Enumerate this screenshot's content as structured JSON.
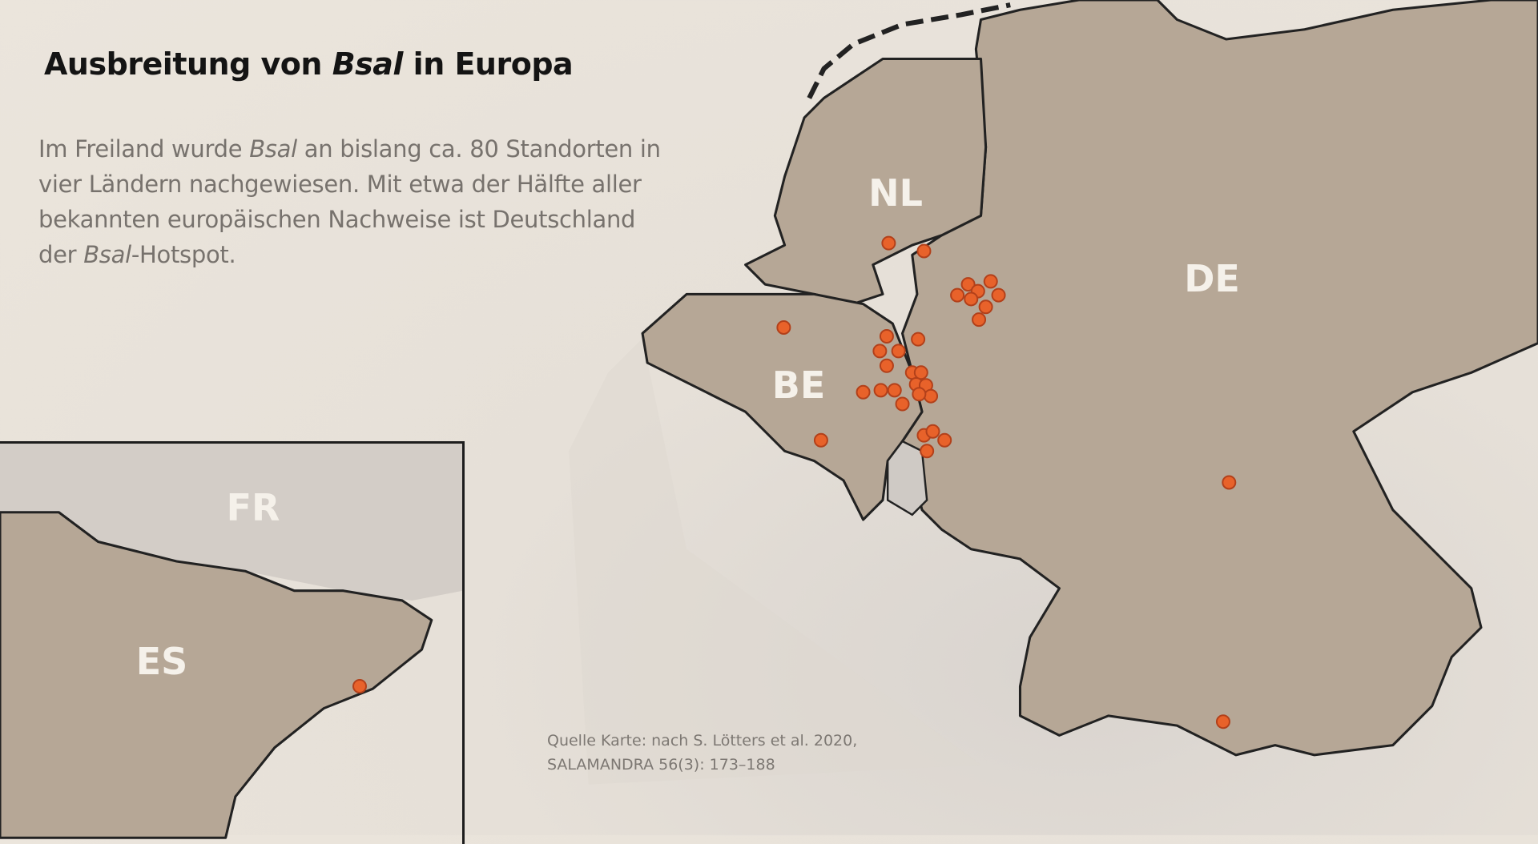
{
  "title": {
    "prefix": "Ausbreitung von ",
    "italic": "Bsal",
    "suffix": " in Europa"
  },
  "paragraph": {
    "part1": "Im Freiland wurde ",
    "italic1": "Bsal",
    "part2": " an bislang ca. 80 Standorten in vier Ländern nachgewiesen. Mit etwa der Hälfte aller bekannten europäischen Nachweise ist Deutschland der ",
    "italic2": "Bsal",
    "part3": "-Hotspot."
  },
  "source": {
    "line1": "Quelle Karte: nach S. Lötters et al. 2020,",
    "line2": "SALAMANDRA 56(3): 173–188"
  },
  "countries": {
    "nl": "NL",
    "de": "DE",
    "be": "BE",
    "fr": "FR",
    "es": "ES"
  },
  "colors": {
    "land": "#b6a796",
    "background": "#e8e2d9",
    "marker": "#e8622a",
    "marker_stroke": "#b2401a",
    "border": "#222222"
  }
}
